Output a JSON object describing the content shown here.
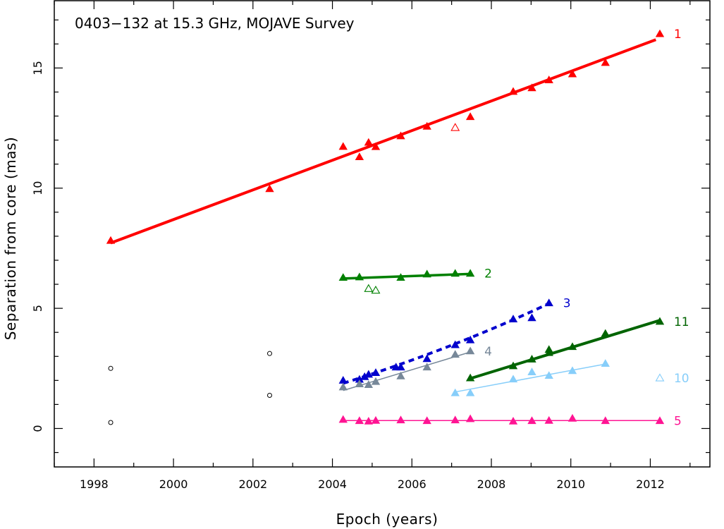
{
  "chart_data": {
    "type": "scatter",
    "title": "0403−132 at 15.3 GHz, MOJAVE Survey",
    "xlabel": "Epoch (years)",
    "ylabel": "Separation from core (mas)",
    "xlim": [
      1997.0,
      2013.5
    ],
    "ylim": [
      -1.6,
      17.8
    ],
    "xticks": [
      1998,
      2000,
      2002,
      2004,
      2006,
      2008,
      2010,
      2012
    ],
    "yticks": [
      0,
      5,
      10,
      15
    ],
    "grid": false,
    "legend": "none",
    "series": [
      {
        "name": "1",
        "color": "#ff0000",
        "marker": "triangle",
        "points": [
          [
            1998.42,
            7.82
          ],
          [
            2002.42,
            9.97
          ],
          [
            2004.27,
            11.73
          ],
          [
            2004.68,
            11.3
          ],
          [
            2004.91,
            11.9
          ],
          [
            2005.09,
            11.72
          ],
          [
            2005.72,
            12.17
          ],
          [
            2006.38,
            12.57
          ],
          [
            2007.47,
            12.97
          ],
          [
            2008.55,
            14.02
          ],
          [
            2009.02,
            14.17
          ],
          [
            2009.45,
            14.5
          ],
          [
            2010.04,
            14.75
          ],
          [
            2010.87,
            15.22
          ],
          [
            2012.24,
            16.42
          ]
        ],
        "open_points": [
          [
            2007.09,
            12.52
          ]
        ],
        "fit": {
          "x": [
            1998.42,
            2012.14
          ],
          "y": [
            7.72,
            16.18
          ],
          "style": "solid",
          "width": 4
        }
      },
      {
        "name": "2",
        "color": "#008000",
        "marker": "triangle",
        "points": [
          [
            2004.27,
            6.28
          ],
          [
            2004.68,
            6.3
          ],
          [
            2005.72,
            6.28
          ],
          [
            2006.38,
            6.42
          ],
          [
            2007.09,
            6.45
          ],
          [
            2007.47,
            6.45
          ]
        ],
        "open_points": [
          [
            2004.91,
            5.82
          ],
          [
            2005.09,
            5.75
          ]
        ],
        "fit": {
          "x": [
            2004.27,
            2007.47
          ],
          "y": [
            6.24,
            6.43
          ],
          "style": "solid",
          "width": 3.5
        }
      },
      {
        "name": "3",
        "color": "#0000cd",
        "marker": "triangle",
        "points": [
          [
            2004.27,
            2.0
          ],
          [
            2004.68,
            2.04
          ],
          [
            2004.81,
            2.15
          ],
          [
            2004.91,
            2.25
          ],
          [
            2005.09,
            2.32
          ],
          [
            2005.6,
            2.55
          ],
          [
            2005.72,
            2.55
          ],
          [
            2006.38,
            2.9
          ],
          [
            2007.09,
            3.48
          ],
          [
            2007.47,
            3.68
          ],
          [
            2008.55,
            4.55
          ],
          [
            2009.02,
            4.6
          ],
          [
            2009.45,
            5.22
          ]
        ],
        "open_points": [],
        "fit": {
          "x": [
            2004.27,
            2009.45
          ],
          "y": [
            1.88,
            5.2
          ],
          "style": "dotted",
          "width": 4,
          "curve": "quadratic",
          "control": [
            2007.0,
            3.3
          ]
        }
      },
      {
        "name": "4",
        "color": "#778899",
        "marker": "triangle",
        "points": [
          [
            2004.27,
            1.72
          ],
          [
            2004.68,
            1.85
          ],
          [
            2004.91,
            1.82
          ],
          [
            2005.09,
            1.95
          ],
          [
            2005.72,
            2.18
          ],
          [
            2006.38,
            2.55
          ],
          [
            2007.09,
            3.08
          ],
          [
            2007.47,
            3.22
          ]
        ],
        "open_points": [],
        "fit": {
          "x": [
            2004.27,
            2007.47
          ],
          "y": [
            1.58,
            3.18
          ],
          "style": "solid",
          "width": 1.5
        }
      },
      {
        "name": "11",
        "color": "#006400",
        "marker": "triangle",
        "points": [
          [
            2007.47,
            2.1
          ],
          [
            2008.55,
            2.6
          ],
          [
            2009.02,
            2.88
          ],
          [
            2009.45,
            3.15
          ],
          [
            2009.45,
            3.28
          ],
          [
            2010.04,
            3.4
          ],
          [
            2010.87,
            3.95
          ],
          [
            2012.24,
            4.45
          ]
        ],
        "open_points": [],
        "fit": {
          "x": [
            2007.47,
            2012.24
          ],
          "y": [
            2.08,
            4.5
          ],
          "style": "solid",
          "width": 4
        }
      },
      {
        "name": "10",
        "color": "#87cefa",
        "marker": "triangle",
        "points": [
          [
            2007.09,
            1.48
          ],
          [
            2007.47,
            1.48
          ],
          [
            2008.55,
            2.05
          ],
          [
            2009.02,
            2.35
          ],
          [
            2009.45,
            2.2
          ],
          [
            2010.04,
            2.4
          ],
          [
            2010.87,
            2.7
          ]
        ],
        "open_points": [
          [
            2012.24,
            2.1
          ]
        ],
        "fit": {
          "x": [
            2007.09,
            2010.87
          ],
          "y": [
            1.52,
            2.68
          ],
          "style": "solid",
          "width": 1.5
        }
      },
      {
        "name": "5",
        "color": "#ff1493",
        "marker": "triangle",
        "points": [
          [
            2004.27,
            0.37
          ],
          [
            2004.68,
            0.32
          ],
          [
            2004.91,
            0.3
          ],
          [
            2005.09,
            0.33
          ],
          [
            2005.72,
            0.35
          ],
          [
            2006.38,
            0.32
          ],
          [
            2007.09,
            0.35
          ],
          [
            2007.47,
            0.4
          ],
          [
            2008.55,
            0.3
          ],
          [
            2009.02,
            0.32
          ],
          [
            2009.45,
            0.33
          ],
          [
            2010.04,
            0.42
          ],
          [
            2010.87,
            0.32
          ],
          [
            2012.24,
            0.32
          ]
        ],
        "open_points": [],
        "fit": {
          "x": [
            2004.27,
            2012.24
          ],
          "y": [
            0.33,
            0.33
          ],
          "style": "solid",
          "width": 1.5
        }
      }
    ],
    "circle_points": [
      [
        1998.42,
        2.5
      ],
      [
        1998.42,
        0.25
      ],
      [
        2002.42,
        3.12
      ],
      [
        2002.42,
        1.38
      ]
    ]
  }
}
